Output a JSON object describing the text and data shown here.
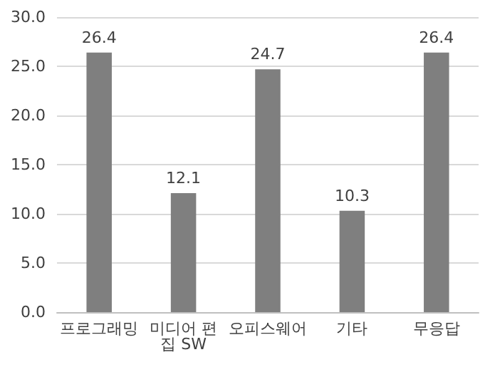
{
  "chart_data": {
    "type": "bar",
    "categories": [
      "프로그래밍",
      "미디어 편집 SW",
      "오피스웨어",
      "기타",
      "무응답"
    ],
    "values": [
      26.4,
      12.1,
      24.7,
      10.3,
      26.4
    ],
    "color": "#7f7f7f",
    "ylim": [
      0,
      30
    ],
    "yticks": [
      {
        "value": 0,
        "label": "0.0"
      },
      {
        "value": 5,
        "label": "5.0"
      },
      {
        "value": 10,
        "label": "10.0"
      },
      {
        "value": 15,
        "label": "15.0"
      },
      {
        "value": 20,
        "label": "20.0"
      },
      {
        "value": 25,
        "label": "25.0"
      },
      {
        "value": 30,
        "label": "30.0"
      }
    ],
    "grid": "y",
    "data_labels": true
  }
}
